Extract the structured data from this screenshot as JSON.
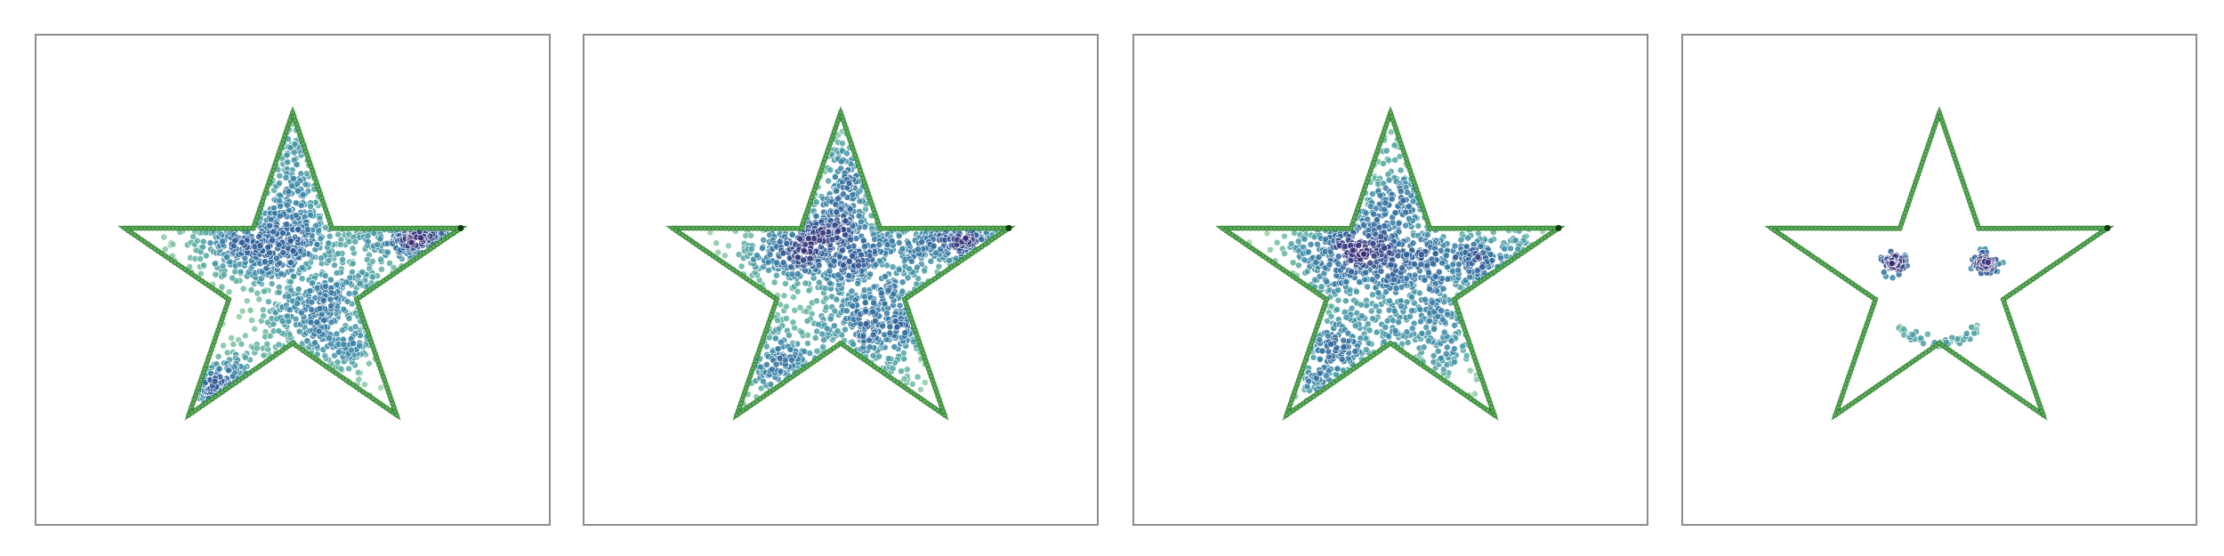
{
  "chart_data": [
    {
      "type": "scatter",
      "title": "",
      "xlabel": "",
      "ylabel": "",
      "grid": false,
      "xlim": [
        -1.25,
        1.25
      ],
      "ylim": [
        -1.25,
        1.25
      ],
      "outline": {
        "shape": "star",
        "color": "#4a9a4a",
        "points": 5
      },
      "colormap": [
        "#a8d8a8",
        "#5fb3a0",
        "#3a8aa8",
        "#2d5f99",
        "#3b2a72"
      ],
      "clusters": [
        {
          "cx": -0.2,
          "cy": 0.22,
          "sx": 0.22,
          "sy": 0.14,
          "n": 420
        },
        {
          "cx": 0.22,
          "cy": -0.28,
          "sx": 0.22,
          "sy": 0.2,
          "n": 380
        },
        {
          "cx": 0.75,
          "cy": 0.28,
          "sx": 0.18,
          "sy": 0.08,
          "n": 170
        },
        {
          "cx": -0.35,
          "cy": -0.72,
          "sx": 0.15,
          "sy": 0.14,
          "n": 140
        },
        {
          "cx": 0.02,
          "cy": 0.62,
          "sx": 0.1,
          "sy": 0.18,
          "n": 150
        },
        {
          "cx": 0.3,
          "cy": 0.18,
          "sx": 0.35,
          "sy": 0.2,
          "n": 180
        }
      ]
    },
    {
      "type": "scatter",
      "title": "",
      "xlabel": "",
      "ylabel": "",
      "grid": false,
      "xlim": [
        -1.25,
        1.25
      ],
      "ylim": [
        -1.25,
        1.25
      ],
      "outline": {
        "shape": "star",
        "color": "#4a9a4a",
        "points": 5
      },
      "colormap": [
        "#a8d8a8",
        "#5fb3a0",
        "#3a8aa8",
        "#2d5f99",
        "#3b2a72"
      ],
      "clusters": [
        {
          "cx": -0.18,
          "cy": 0.23,
          "sx": 0.22,
          "sy": 0.14,
          "n": 400
        },
        {
          "cx": 0.23,
          "cy": -0.28,
          "sx": 0.23,
          "sy": 0.2,
          "n": 360
        },
        {
          "cx": 0.72,
          "cy": 0.26,
          "sx": 0.2,
          "sy": 0.09,
          "n": 170
        },
        {
          "cx": -0.38,
          "cy": -0.6,
          "sx": 0.18,
          "sy": 0.2,
          "n": 150
        },
        {
          "cx": 0.02,
          "cy": 0.6,
          "sx": 0.1,
          "sy": 0.2,
          "n": 160
        },
        {
          "cx": 0.25,
          "cy": 0.15,
          "sx": 0.35,
          "sy": 0.22,
          "n": 200
        }
      ]
    },
    {
      "type": "scatter",
      "title": "",
      "xlabel": "",
      "ylabel": "",
      "grid": false,
      "xlim": [
        -1.25,
        1.25
      ],
      "ylim": [
        -1.25,
        1.25
      ],
      "outline": {
        "shape": "star",
        "color": "#4a9a4a",
        "points": 5
      },
      "colormap": [
        "#a8d8a8",
        "#5fb3a0",
        "#3a8aa8",
        "#2d5f99",
        "#3b2a72"
      ],
      "clusters": [
        {
          "cx": -0.22,
          "cy": 0.18,
          "sx": 0.22,
          "sy": 0.16,
          "n": 380
        },
        {
          "cx": 0.22,
          "cy": -0.25,
          "sx": 0.28,
          "sy": 0.22,
          "n": 330
        },
        {
          "cx": 0.5,
          "cy": 0.15,
          "sx": 0.3,
          "sy": 0.13,
          "n": 230
        },
        {
          "cx": -0.35,
          "cy": -0.55,
          "sx": 0.2,
          "sy": 0.22,
          "n": 170
        },
        {
          "cx": 0.05,
          "cy": 0.52,
          "sx": 0.12,
          "sy": 0.22,
          "n": 160
        }
      ]
    },
    {
      "type": "scatter",
      "title": "",
      "xlabel": "",
      "ylabel": "",
      "grid": false,
      "xlim": [
        -1.25,
        1.25
      ],
      "ylim": [
        -1.25,
        1.25
      ],
      "outline": {
        "shape": "star",
        "color": "#4a9a4a",
        "points": 5
      },
      "colormap": [
        "#a8d8a8",
        "#5fb3a0",
        "#3a8aa8",
        "#2d5f99",
        "#3b2a72"
      ],
      "features": [
        {
          "kind": "eye",
          "cx": -0.26,
          "cy": 0.1,
          "r": 0.09,
          "n": 70
        },
        {
          "kind": "eye",
          "cx": 0.26,
          "cy": 0.1,
          "r": 0.09,
          "n": 70
        },
        {
          "kind": "mouth",
          "cx": 0.0,
          "cy": -0.28,
          "rx": 0.2,
          "ry": 0.1,
          "n": 60
        }
      ]
    }
  ]
}
